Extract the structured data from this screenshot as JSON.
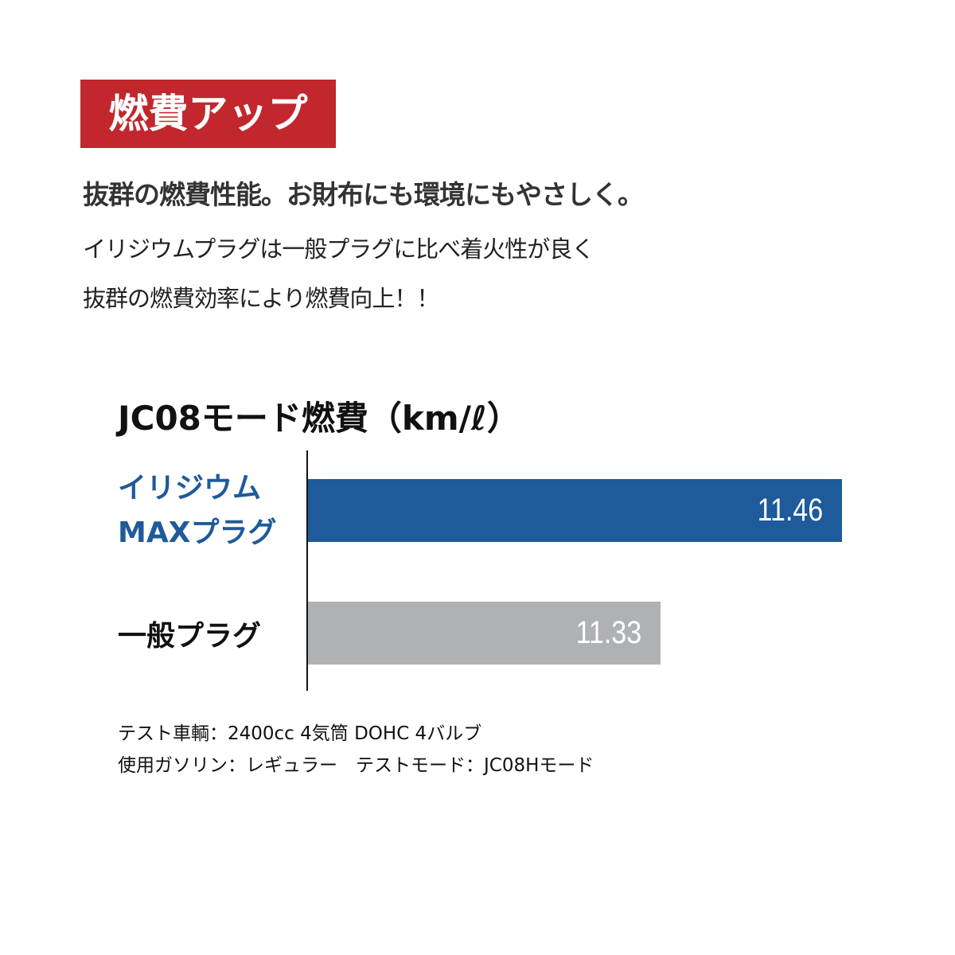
{
  "badge": "燃費アップ",
  "subheading": "抜群の燃費性能。お財布にも環境にもやさしく。",
  "body_lines": [
    "イリジウムプラグは一般プラグに比べ着火性が良く",
    "抜群の燃費効率により燃費向上！！"
  ],
  "colors": {
    "badge": "#c1272d",
    "iridium": "#1f5a9a",
    "standard": "#b0b1b3"
  },
  "chart_data": {
    "type": "bar",
    "orientation": "horizontal",
    "title": "JC08モード燃費（km/ℓ）",
    "categories": [
      "イリジウム MAXプラグ",
      "一般プラグ"
    ],
    "category_lines": [
      [
        "イリジウム",
        "MAXプラグ"
      ],
      [
        "一般プラグ"
      ]
    ],
    "values": [
      11.46,
      11.33
    ],
    "data_labels": [
      "11.46",
      "11.33"
    ],
    "xlim": [
      11.077,
      11.46
    ],
    "grid": false
  },
  "notes": [
    "テスト車輌：2400cc 4気筒 DOHC 4バルブ",
    "使用ガソリン：レギュラー　テストモード：JC08Hモード"
  ]
}
